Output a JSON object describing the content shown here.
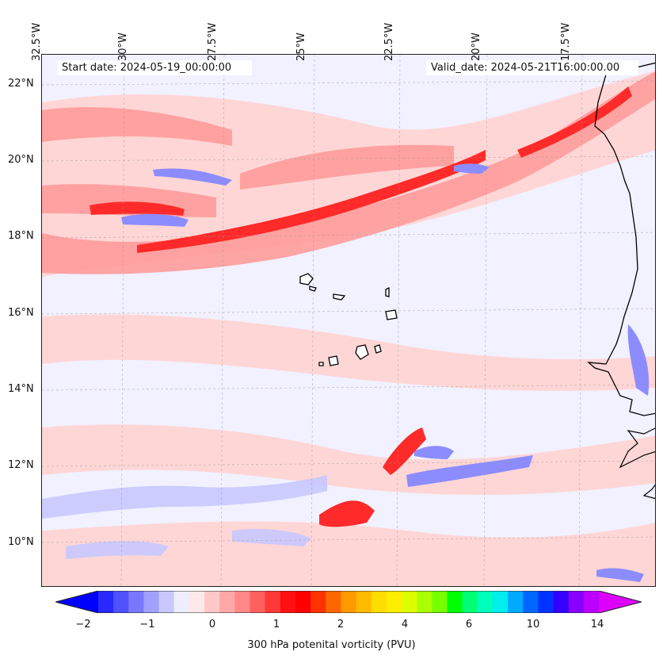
{
  "header": {
    "start_date": "Start date: 2024-05-19_00:00:00",
    "valid_date": "Valid_date: 2024-05-21T16:00:00.00"
  },
  "axes": {
    "lon_labels": [
      "32.5°W",
      "30°W",
      "27.5°W",
      "25°W",
      "22.5°W",
      "20°W",
      "17.5°W"
    ],
    "lat_labels": [
      "22°N",
      "20°N",
      "18°N",
      "16°N",
      "14°N",
      "12°N",
      "10°N"
    ],
    "gridlines": true
  },
  "colorbar": {
    "label": "300 hPa potenital vorticity (PVU)",
    "ticks": [
      "−2",
      "−1",
      "0",
      "1",
      "2",
      "4",
      "6",
      "10",
      "14"
    ],
    "extend": "both",
    "colors": [
      "#0000ff",
      "#2828ff",
      "#5050ff",
      "#7878ff",
      "#a0a0ff",
      "#c8c8ff",
      "#eeeeff",
      "#ffe8e8",
      "#ffc8c8",
      "#ffa8a8",
      "#ff8888",
      "#ff6060",
      "#ff3838",
      "#ff1010",
      "#ff0000",
      "#ff3300",
      "#ff6600",
      "#ff9900",
      "#ffbb00",
      "#ffdd00",
      "#ffee00",
      "#ddff00",
      "#aaff00",
      "#77ff00",
      "#00ff00",
      "#00ff77",
      "#00ffbb",
      "#00eeee",
      "#00aaff",
      "#0066ff",
      "#0033ff",
      "#3300ff",
      "#8800ff",
      "#bb00ff",
      "#dd00ff"
    ]
  },
  "map": {
    "field": "300 hPa potential vorticity",
    "background_color": "#f1f1ff",
    "feature_colors": {
      "strong_positive": "#ff2020",
      "moderate_positive": "#ff8888",
      "weak_positive": "#ffd0d0",
      "negative": "#8080ff",
      "coastline": "#000000"
    }
  }
}
